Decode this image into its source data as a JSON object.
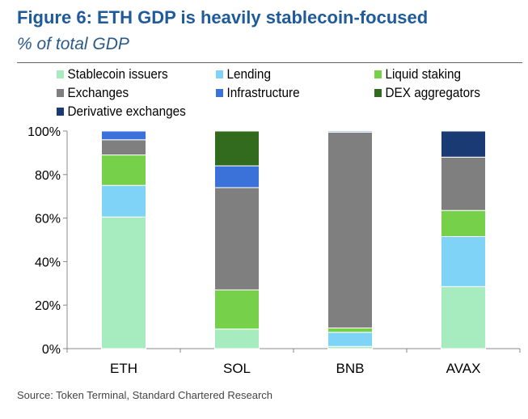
{
  "title": "Figure 6: ETH GDP is heavily stablecoin-focused",
  "subtitle": "% of total GDP",
  "source": "Source: Token Terminal, Standard Chartered Research",
  "chart_data": {
    "type": "bar",
    "stacked": true,
    "title": "Figure 6: ETH GDP is heavily stablecoin-focused",
    "subtitle": "% of total GDP",
    "xlabel": "",
    "ylabel": "% of total GDP",
    "ylim": [
      0,
      100
    ],
    "yticks": [
      0,
      20,
      40,
      60,
      80,
      100
    ],
    "ytick_labels": [
      "0%",
      "20%",
      "40%",
      "60%",
      "80%",
      "100%"
    ],
    "grid": false,
    "legend_position": "top",
    "categories": [
      "ETH",
      "SOL",
      "BNB",
      "AVAX"
    ],
    "series": [
      {
        "name": "Stablecoin issuers",
        "color": "#a6ecbf",
        "values": [
          60.5,
          9,
          1,
          28.5
        ]
      },
      {
        "name": "Lending",
        "color": "#7fd3f7",
        "values": [
          14.5,
          0,
          6.5,
          23
        ]
      },
      {
        "name": "Liquid staking",
        "color": "#77d04a",
        "values": [
          14,
          18,
          2,
          12
        ]
      },
      {
        "name": "Exchanges",
        "color": "#7f7f7f",
        "values": [
          7,
          47,
          90,
          24.5
        ]
      },
      {
        "name": "Infrastructure",
        "color": "#3a72d9",
        "values": [
          4,
          10,
          0.5,
          0
        ]
      },
      {
        "name": "DEX aggregators",
        "color": "#336b1e",
        "values": [
          0,
          16,
          0,
          0
        ]
      },
      {
        "name": "Derivative exchanges",
        "color": "#1a3a73",
        "values": [
          0,
          0,
          0,
          12
        ]
      }
    ]
  }
}
